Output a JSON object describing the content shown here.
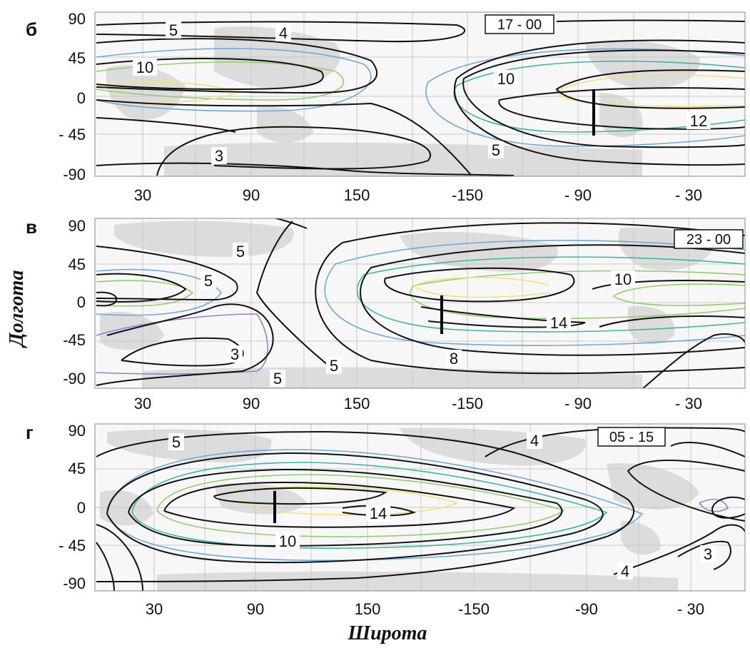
{
  "panels": [
    {
      "id": "b",
      "letter": "б",
      "time_label": "17 - 00",
      "y_ticks": [
        "90",
        "45",
        "0",
        "- 45",
        "-90"
      ],
      "x_ticks": [
        "30",
        "90",
        "150",
        "-150",
        "- 90",
        "- 30"
      ],
      "contour_labels": [
        "5",
        "4",
        "10",
        "10",
        "12",
        "5",
        "3"
      ]
    },
    {
      "id": "v",
      "letter": "в",
      "time_label": "23 - 00",
      "y_ticks": [
        "90",
        "45",
        "0",
        "-45",
        "-90"
      ],
      "x_ticks": [
        "30",
        "90",
        "150",
        "-150",
        "- 90",
        "- 30"
      ],
      "contour_labels": [
        "5",
        "5",
        "10",
        "14",
        "3",
        "8",
        "5",
        "5"
      ]
    },
    {
      "id": "g",
      "letter": "г",
      "time_label": "05 - 15",
      "y_ticks": [
        "90",
        "45",
        "0",
        "- 45",
        "-90"
      ],
      "x_ticks": [
        "30",
        "90",
        "150",
        "-150",
        "-90",
        "- 30"
      ],
      "contour_labels": [
        "5",
        "4",
        "14",
        "10",
        "3",
        "4"
      ]
    }
  ],
  "y_axis_title": "Долгота",
  "x_axis_title": "Широта",
  "colors": {
    "contour_main": "#111111",
    "contour_blue": "#6fa8dc",
    "contour_teal": "#3cb89c",
    "contour_green": "#8fd06a",
    "contour_yellow": "#f2e27a",
    "contour_purple": "#9c7ccf",
    "land": "#dcdcdc",
    "grid": "#c9c9c9"
  }
}
